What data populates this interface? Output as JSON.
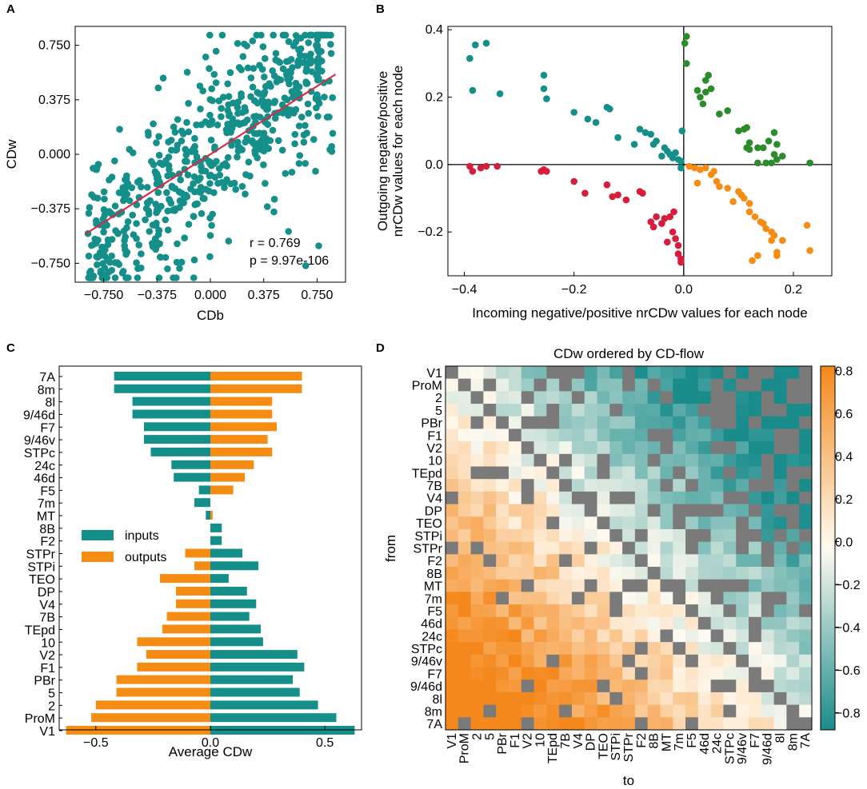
{
  "colors": {
    "teal": "#148f8a",
    "orange": "#f58c14",
    "red": "#d61e3c",
    "green": "#2c8c2c",
    "fit": "#d62d45",
    "heat_high": "#f4881c",
    "heat_low": "#1a8c8c",
    "heat_mid": "#fffaf0",
    "missing": "#7a7a7a"
  },
  "chart_data": [
    {
      "id": "A",
      "panel_letter": "A",
      "type": "scatter",
      "xlabel": "CDb",
      "ylabel": "CDw",
      "xticks": [
        "−0.750",
        "−0.375",
        "0.000",
        "0.375",
        "0.750"
      ],
      "xtick_values": [
        -0.75,
        -0.375,
        0.0,
        0.375,
        0.75
      ],
      "yticks": [
        "0.750",
        "0.375",
        "0.000",
        "−0.375",
        "−0.750"
      ],
      "ytick_values": [
        0.75,
        0.375,
        0.0,
        -0.375,
        -0.75
      ],
      "xlim": [
        -0.95,
        0.95
      ],
      "ylim": [
        -0.88,
        0.88
      ],
      "fit_line": {
        "x": [
          -0.88,
          0.88
        ],
        "y": [
          -0.55,
          0.55
        ]
      },
      "annotation_r": "r = 0.769",
      "annotation_p": "p = 9.97e-106",
      "n_points": 640,
      "correlation": 0.769
    },
    {
      "id": "B",
      "panel_letter": "B",
      "type": "scatter",
      "xlabel": "Incoming negative/positive nrCDw values for each node",
      "ylabel_line1": "Outgoing negative/positive",
      "ylabel_line2": "nrCDw values for each node",
      "xticks": [
        "−0.4",
        "−0.2",
        "0.0",
        "0.2"
      ],
      "xtick_values": [
        -0.4,
        -0.2,
        0.0,
        0.2
      ],
      "yticks": [
        "0.4",
        "0.2",
        "0.0",
        "−0.2"
      ],
      "ytick_values": [
        0.4,
        0.2,
        0.0,
        -0.2
      ],
      "xlim": [
        -0.43,
        0.27
      ],
      "ylim": [
        -0.33,
        0.41
      ],
      "series": [
        {
          "name": "teal",
          "color": "teal",
          "points": [
            [
              -0.39,
              0.315
            ],
            [
              -0.38,
              0.355
            ],
            [
              -0.36,
              0.36
            ],
            [
              -0.385,
              0.22
            ],
            [
              -0.335,
              0.21
            ],
            [
              -0.255,
              0.265
            ],
            [
              -0.255,
              0.225
            ],
            [
              -0.25,
              0.195
            ],
            [
              -0.2,
              0.155
            ],
            [
              -0.175,
              0.135
            ],
            [
              -0.16,
              0.125
            ],
            [
              -0.14,
              0.17
            ],
            [
              -0.135,
              0.165
            ],
            [
              -0.08,
              0.105
            ],
            [
              -0.07,
              0.095
            ],
            [
              -0.06,
              0.09
            ],
            [
              -0.055,
              0.06
            ],
            [
              -0.05,
              0.07
            ],
            [
              -0.035,
              0.05
            ],
            [
              -0.03,
              0.04
            ],
            [
              -0.025,
              0.03
            ],
            [
              -0.02,
              0.02
            ],
            [
              -0.01,
              0.015
            ],
            [
              -0.005,
              0.01
            ],
            [
              -0.003,
              0.1
            ],
            [
              -0.12,
              0.08
            ],
            [
              -0.09,
              0.06
            ],
            [
              -0.015,
              0.035
            ],
            [
              -0.04,
              0.025
            ],
            [
              -0.005,
              -0.01
            ]
          ]
        },
        {
          "name": "red",
          "color": "red",
          "points": [
            [
              -0.39,
              -0.005
            ],
            [
              -0.385,
              -0.02
            ],
            [
              -0.37,
              -0.01
            ],
            [
              -0.36,
              -0.005
            ],
            [
              -0.34,
              -0.005
            ],
            [
              -0.26,
              -0.02
            ],
            [
              -0.255,
              -0.015
            ],
            [
              -0.25,
              -0.02
            ],
            [
              -0.2,
              -0.05
            ],
            [
              -0.18,
              -0.085
            ],
            [
              -0.14,
              -0.06
            ],
            [
              -0.13,
              -0.095
            ],
            [
              -0.12,
              -0.09
            ],
            [
              -0.105,
              -0.105
            ],
            [
              -0.08,
              -0.08
            ],
            [
              -0.075,
              -0.085
            ],
            [
              -0.06,
              -0.17
            ],
            [
              -0.055,
              -0.185
            ],
            [
              -0.05,
              -0.155
            ],
            [
              -0.04,
              -0.175
            ],
            [
              -0.035,
              -0.16
            ],
            [
              -0.025,
              -0.155
            ],
            [
              -0.02,
              -0.2
            ],
            [
              -0.015,
              -0.22
            ],
            [
              -0.01,
              -0.24
            ],
            [
              -0.01,
              -0.265
            ],
            [
              -0.005,
              -0.28
            ],
            [
              -0.005,
              -0.29
            ],
            [
              -0.03,
              -0.23
            ],
            [
              -0.018,
              -0.14
            ]
          ]
        },
        {
          "name": "green",
          "color": "green",
          "points": [
            [
              0.005,
              0.38
            ],
            [
              0.002,
              0.36
            ],
            [
              0.005,
              0.3
            ],
            [
              0.025,
              0.22
            ],
            [
              0.03,
              0.2
            ],
            [
              0.035,
              0.18
            ],
            [
              0.04,
              0.215
            ],
            [
              0.04,
              0.25
            ],
            [
              0.045,
              0.265
            ],
            [
              0.05,
              0.225
            ],
            [
              0.065,
              0.15
            ],
            [
              0.08,
              0.16
            ],
            [
              0.1,
              0.1
            ],
            [
              0.11,
              0.105
            ],
            [
              0.115,
              0.11
            ],
            [
              0.12,
              0.065
            ],
            [
              0.115,
              0.05
            ],
            [
              0.12,
              0.045
            ],
            [
              0.135,
              0.05
            ],
            [
              0.145,
              0.05
            ],
            [
              0.155,
              0.07
            ],
            [
              0.165,
              0.095
            ],
            [
              0.17,
              0.06
            ],
            [
              0.165,
              0.03
            ],
            [
              0.17,
              0.015
            ],
            [
              0.18,
              0.025
            ],
            [
              0.16,
              0.005
            ],
            [
              0.15,
              0.005
            ],
            [
              0.135,
              0.005
            ],
            [
              0.23,
              0.005
            ]
          ]
        },
        {
          "name": "orange",
          "color": "orange",
          "points": [
            [
              0.01,
              -0.005
            ],
            [
              0.02,
              -0.01
            ],
            [
              0.03,
              -0.015
            ],
            [
              0.04,
              -0.01
            ],
            [
              0.05,
              -0.03
            ],
            [
              0.06,
              -0.05
            ],
            [
              0.065,
              -0.065
            ],
            [
              0.08,
              -0.07
            ],
            [
              0.1,
              -0.08
            ],
            [
              0.105,
              -0.09
            ],
            [
              0.11,
              -0.1
            ],
            [
              0.12,
              -0.115
            ],
            [
              0.12,
              -0.14
            ],
            [
              0.13,
              -0.155
            ],
            [
              0.14,
              -0.17
            ],
            [
              0.145,
              -0.175
            ],
            [
              0.15,
              -0.19
            ],
            [
              0.16,
              -0.2
            ],
            [
              0.165,
              -0.21
            ],
            [
              0.17,
              -0.26
            ],
            [
              0.17,
              -0.27
            ],
            [
              0.135,
              -0.27
            ],
            [
              0.125,
              -0.285
            ],
            [
              0.16,
              -0.225
            ],
            [
              0.18,
              -0.225
            ],
            [
              0.225,
              -0.18
            ],
            [
              0.23,
              -0.255
            ],
            [
              0.09,
              -0.11
            ],
            [
              0.025,
              -0.055
            ],
            [
              0.055,
              -0.02
            ]
          ]
        }
      ]
    },
    {
      "id": "C",
      "panel_letter": "C",
      "type": "bar",
      "orientation": "horizontal",
      "xlabel": "Average CDw",
      "xticks": [
        "−0.5",
        "0.0",
        "0.5"
      ],
      "xtick_values": [
        -0.5,
        0.0,
        0.5
      ],
      "xlim": [
        -0.66,
        0.66
      ],
      "categories": [
        "7A",
        "8m",
        "8l",
        "9/46d",
        "F7",
        "9/46v",
        "STPc",
        "24c",
        "46d",
        "F5",
        "7m",
        "MT",
        "8B",
        "F2",
        "STPr",
        "STPi",
        "TEO",
        "DP",
        "V4",
        "7B",
        "TEpd",
        "10",
        "V2",
        "F1",
        "PBr",
        "5",
        "2",
        "ProM",
        "V1"
      ],
      "series": [
        {
          "name": "inputs",
          "color": "teal",
          "values": [
            -0.42,
            -0.42,
            -0.34,
            -0.34,
            -0.29,
            -0.29,
            -0.26,
            -0.17,
            -0.16,
            -0.05,
            -0.07,
            -0.02,
            0.05,
            0.05,
            0.14,
            0.21,
            0.08,
            0.16,
            0.2,
            0.17,
            0.22,
            0.23,
            0.38,
            0.41,
            0.36,
            0.39,
            0.47,
            0.55,
            0.63
          ]
        },
        {
          "name": "outputs",
          "color": "orange",
          "values": [
            0.4,
            0.4,
            0.27,
            0.27,
            0.29,
            0.25,
            0.27,
            0.19,
            0.15,
            0.1,
            0.0,
            0.01,
            0.0,
            0.0,
            -0.11,
            -0.07,
            -0.22,
            -0.15,
            -0.15,
            -0.19,
            -0.21,
            -0.32,
            -0.28,
            -0.32,
            -0.41,
            -0.41,
            -0.5,
            -0.52,
            -0.63
          ]
        }
      ],
      "legend": [
        "inputs",
        "outputs"
      ]
    },
    {
      "id": "D",
      "panel_letter": "D",
      "type": "heatmap",
      "title": "CDw ordered by CD-flow",
      "xlabel": "to",
      "ylabel": "from",
      "row_labels": [
        "V1",
        "ProM",
        "2",
        "5",
        "PBr",
        "F1",
        "V2",
        "10",
        "TEpd",
        "7B",
        "V4",
        "DP",
        "TEO",
        "STPi",
        "STPr",
        "F2",
        "8B",
        "MT",
        "7m",
        "F5",
        "46d",
        "24c",
        "STPc",
        "9/46v",
        "F7",
        "9/46d",
        "8l",
        "8m",
        "7A"
      ],
      "col_labels": [
        "V1",
        "ProM",
        "2",
        "5",
        "PBr",
        "F1",
        "V2",
        "10",
        "TEpd",
        "7B",
        "V4",
        "DP",
        "TEO",
        "STPi",
        "STPr",
        "F2",
        "8B",
        "MT",
        "7m",
        "F5",
        "46d",
        "24c",
        "STPc",
        "9/46v",
        "F7",
        "9/46d",
        "8l",
        "8m",
        "7A"
      ],
      "colorbar_ticks": [
        "0.8",
        "0.6",
        "0.4",
        "0.2",
        "0.0",
        "−0.2",
        "−0.4",
        "−0.6",
        "−0.8"
      ],
      "colorbar_tick_values": [
        0.8,
        0.6,
        0.4,
        0.2,
        0.0,
        -0.2,
        -0.4,
        -0.6,
        -0.8
      ],
      "vmin": -0.88,
      "vmax": 0.82,
      "pattern": "values fall from about +0.6 in the lower-left (later rows, earlier columns) to about -0.75 in the upper-right (early rows, late columns); grey cells are missing connections"
    }
  ]
}
